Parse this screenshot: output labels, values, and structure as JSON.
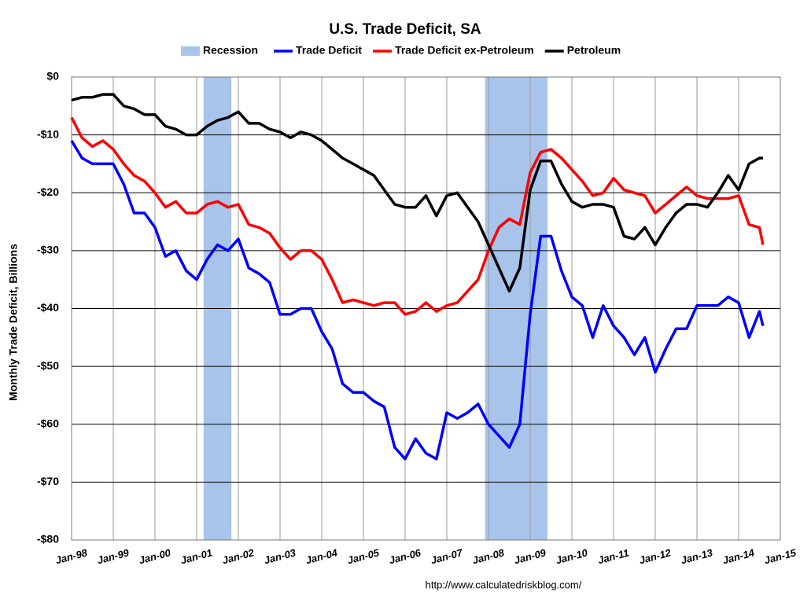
{
  "chart_data": {
    "type": "line",
    "title": "U.S. Trade Deficit, SA",
    "ylabel": "Monthly Trade Deficit, Billions",
    "source": "http://www.calculatedriskblog.com/",
    "recession_label": "Recession",
    "recession_color": "#a9c4ea",
    "recessions": [
      {
        "start": "2001-03",
        "end": "2001-11"
      },
      {
        "start": "2007-12",
        "end": "2009-06"
      }
    ],
    "x": [
      "1998-01",
      "1998-04",
      "1998-07",
      "1998-10",
      "1999-01",
      "1999-04",
      "1999-07",
      "1999-10",
      "2000-01",
      "2000-04",
      "2000-07",
      "2000-10",
      "2001-01",
      "2001-04",
      "2001-07",
      "2001-10",
      "2002-01",
      "2002-04",
      "2002-07",
      "2002-10",
      "2003-01",
      "2003-04",
      "2003-07",
      "2003-10",
      "2004-01",
      "2004-04",
      "2004-07",
      "2004-10",
      "2005-01",
      "2005-04",
      "2005-07",
      "2005-10",
      "2006-01",
      "2006-04",
      "2006-07",
      "2006-10",
      "2007-01",
      "2007-04",
      "2007-07",
      "2007-10",
      "2008-01",
      "2008-04",
      "2008-07",
      "2008-10",
      "2009-01",
      "2009-04",
      "2009-07",
      "2009-10",
      "2010-01",
      "2010-04",
      "2010-07",
      "2010-10",
      "2011-01",
      "2011-04",
      "2011-07",
      "2011-10",
      "2012-01",
      "2012-04",
      "2012-07",
      "2012-10",
      "2013-01",
      "2013-04",
      "2013-07",
      "2013-10",
      "2014-01",
      "2014-04",
      "2014-07",
      "2014-08"
    ],
    "series": [
      {
        "name": "Trade Deficit",
        "color": "#0000ff",
        "values": [
          -11,
          -14,
          -15,
          -15,
          -15,
          -18.5,
          -23.5,
          -23.5,
          -26,
          -31,
          -30,
          -33.5,
          -35,
          -31.5,
          -29,
          -30,
          -28,
          -33,
          -34,
          -35.5,
          -41,
          -41,
          -40,
          -40,
          -44,
          -47,
          -53,
          -54.5,
          -54.5,
          -56,
          -57,
          -64,
          -66,
          -62.5,
          -65,
          -66,
          -58,
          -59,
          -58,
          -56.5,
          -60,
          -62,
          -64,
          -60,
          -41,
          -27.5,
          -27.5,
          -33.5,
          -38,
          -39.5,
          -45,
          -39.5,
          -43,
          -45,
          -48,
          -45,
          -51,
          -47,
          -43.5,
          -43.5,
          -39.5,
          -39.5,
          -39.5,
          -38,
          -39,
          -45,
          -40.5,
          -43
        ]
      },
      {
        "name": "Trade Deficit ex-Petroleum",
        "color": "#ff0000",
        "values": [
          -7,
          -10.5,
          -12,
          -11,
          -12.5,
          -15,
          -17,
          -18,
          -20,
          -22.5,
          -21.5,
          -23.5,
          -23.5,
          -22,
          -21.5,
          -22.5,
          -22,
          -25.5,
          -26,
          -27,
          -29.5,
          -31.5,
          -30,
          -30,
          -31.5,
          -35,
          -39,
          -38.5,
          -39,
          -39.5,
          -39,
          -39,
          -41,
          -40.5,
          -39,
          -40.5,
          -39.5,
          -39,
          -37,
          -35,
          -30,
          -26,
          -24.5,
          -25.5,
          -16.5,
          -13,
          -12.5,
          -14,
          -16,
          -18,
          -20.5,
          -20,
          -17.5,
          -19.5,
          -20,
          -20.5,
          -23.5,
          -22,
          -20.5,
          -19,
          -20.5,
          -21,
          -21,
          -21,
          -20.5,
          -25.5,
          -26,
          -29
        ]
      },
      {
        "name": "Petroleum",
        "color": "#000000",
        "values": [
          -4,
          -3.5,
          -3.5,
          -3,
          -3,
          -5,
          -5.5,
          -6.5,
          -6.5,
          -8.5,
          -9,
          -10,
          -10,
          -8.5,
          -7.5,
          -7,
          -6,
          -8,
          -8,
          -9,
          -9.5,
          -10.5,
          -9.5,
          -10,
          -11,
          -12.5,
          -14,
          -15,
          -16,
          -17,
          -19.5,
          -22,
          -22.5,
          -22.5,
          -20.5,
          -24,
          -20.5,
          -20,
          -22.5,
          -25,
          -29,
          -33,
          -37,
          -33,
          -19.5,
          -14.5,
          -14.5,
          -18.5,
          -21.5,
          -22.5,
          -22,
          -22,
          -22.5,
          -27.5,
          -28,
          -26,
          -29,
          -26,
          -23.5,
          -22,
          -22,
          -22.5,
          -20,
          -17,
          -19.5,
          -15,
          -14,
          -14
        ]
      }
    ],
    "xlim": [
      "1998-01",
      "2015-01"
    ],
    "xticks": [
      {
        "value": "1998-01",
        "label": "Jan-98"
      },
      {
        "value": "1999-01",
        "label": "Jan-99"
      },
      {
        "value": "2000-01",
        "label": "Jan-00"
      },
      {
        "value": "2001-01",
        "label": "Jan-01"
      },
      {
        "value": "2002-01",
        "label": "Jan-02"
      },
      {
        "value": "2003-01",
        "label": "Jan-03"
      },
      {
        "value": "2004-01",
        "label": "Jan-04"
      },
      {
        "value": "2005-01",
        "label": "Jan-05"
      },
      {
        "value": "2006-01",
        "label": "Jan-06"
      },
      {
        "value": "2007-01",
        "label": "Jan-07"
      },
      {
        "value": "2008-01",
        "label": "Jan-08"
      },
      {
        "value": "2009-01",
        "label": "Jan-09"
      },
      {
        "value": "2010-01",
        "label": "Jan-10"
      },
      {
        "value": "2011-01",
        "label": "Jan-11"
      },
      {
        "value": "2012-01",
        "label": "Jan-12"
      },
      {
        "value": "2013-01",
        "label": "Jan-13"
      },
      {
        "value": "2014-01",
        "label": "Jan-14"
      },
      {
        "value": "2015-01",
        "label": "Jan-15"
      }
    ],
    "ylim": [
      -80,
      0
    ],
    "yticks": [
      {
        "value": 0,
        "label": "$0"
      },
      {
        "value": -10,
        "label": "-$10"
      },
      {
        "value": -20,
        "label": "-$20"
      },
      {
        "value": -30,
        "label": "-$30"
      },
      {
        "value": -40,
        "label": "-$40"
      },
      {
        "value": -50,
        "label": "-$50"
      },
      {
        "value": -60,
        "label": "-$60"
      },
      {
        "value": -70,
        "label": "-$70"
      },
      {
        "value": -80,
        "label": "-$80"
      }
    ],
    "grid": true
  }
}
